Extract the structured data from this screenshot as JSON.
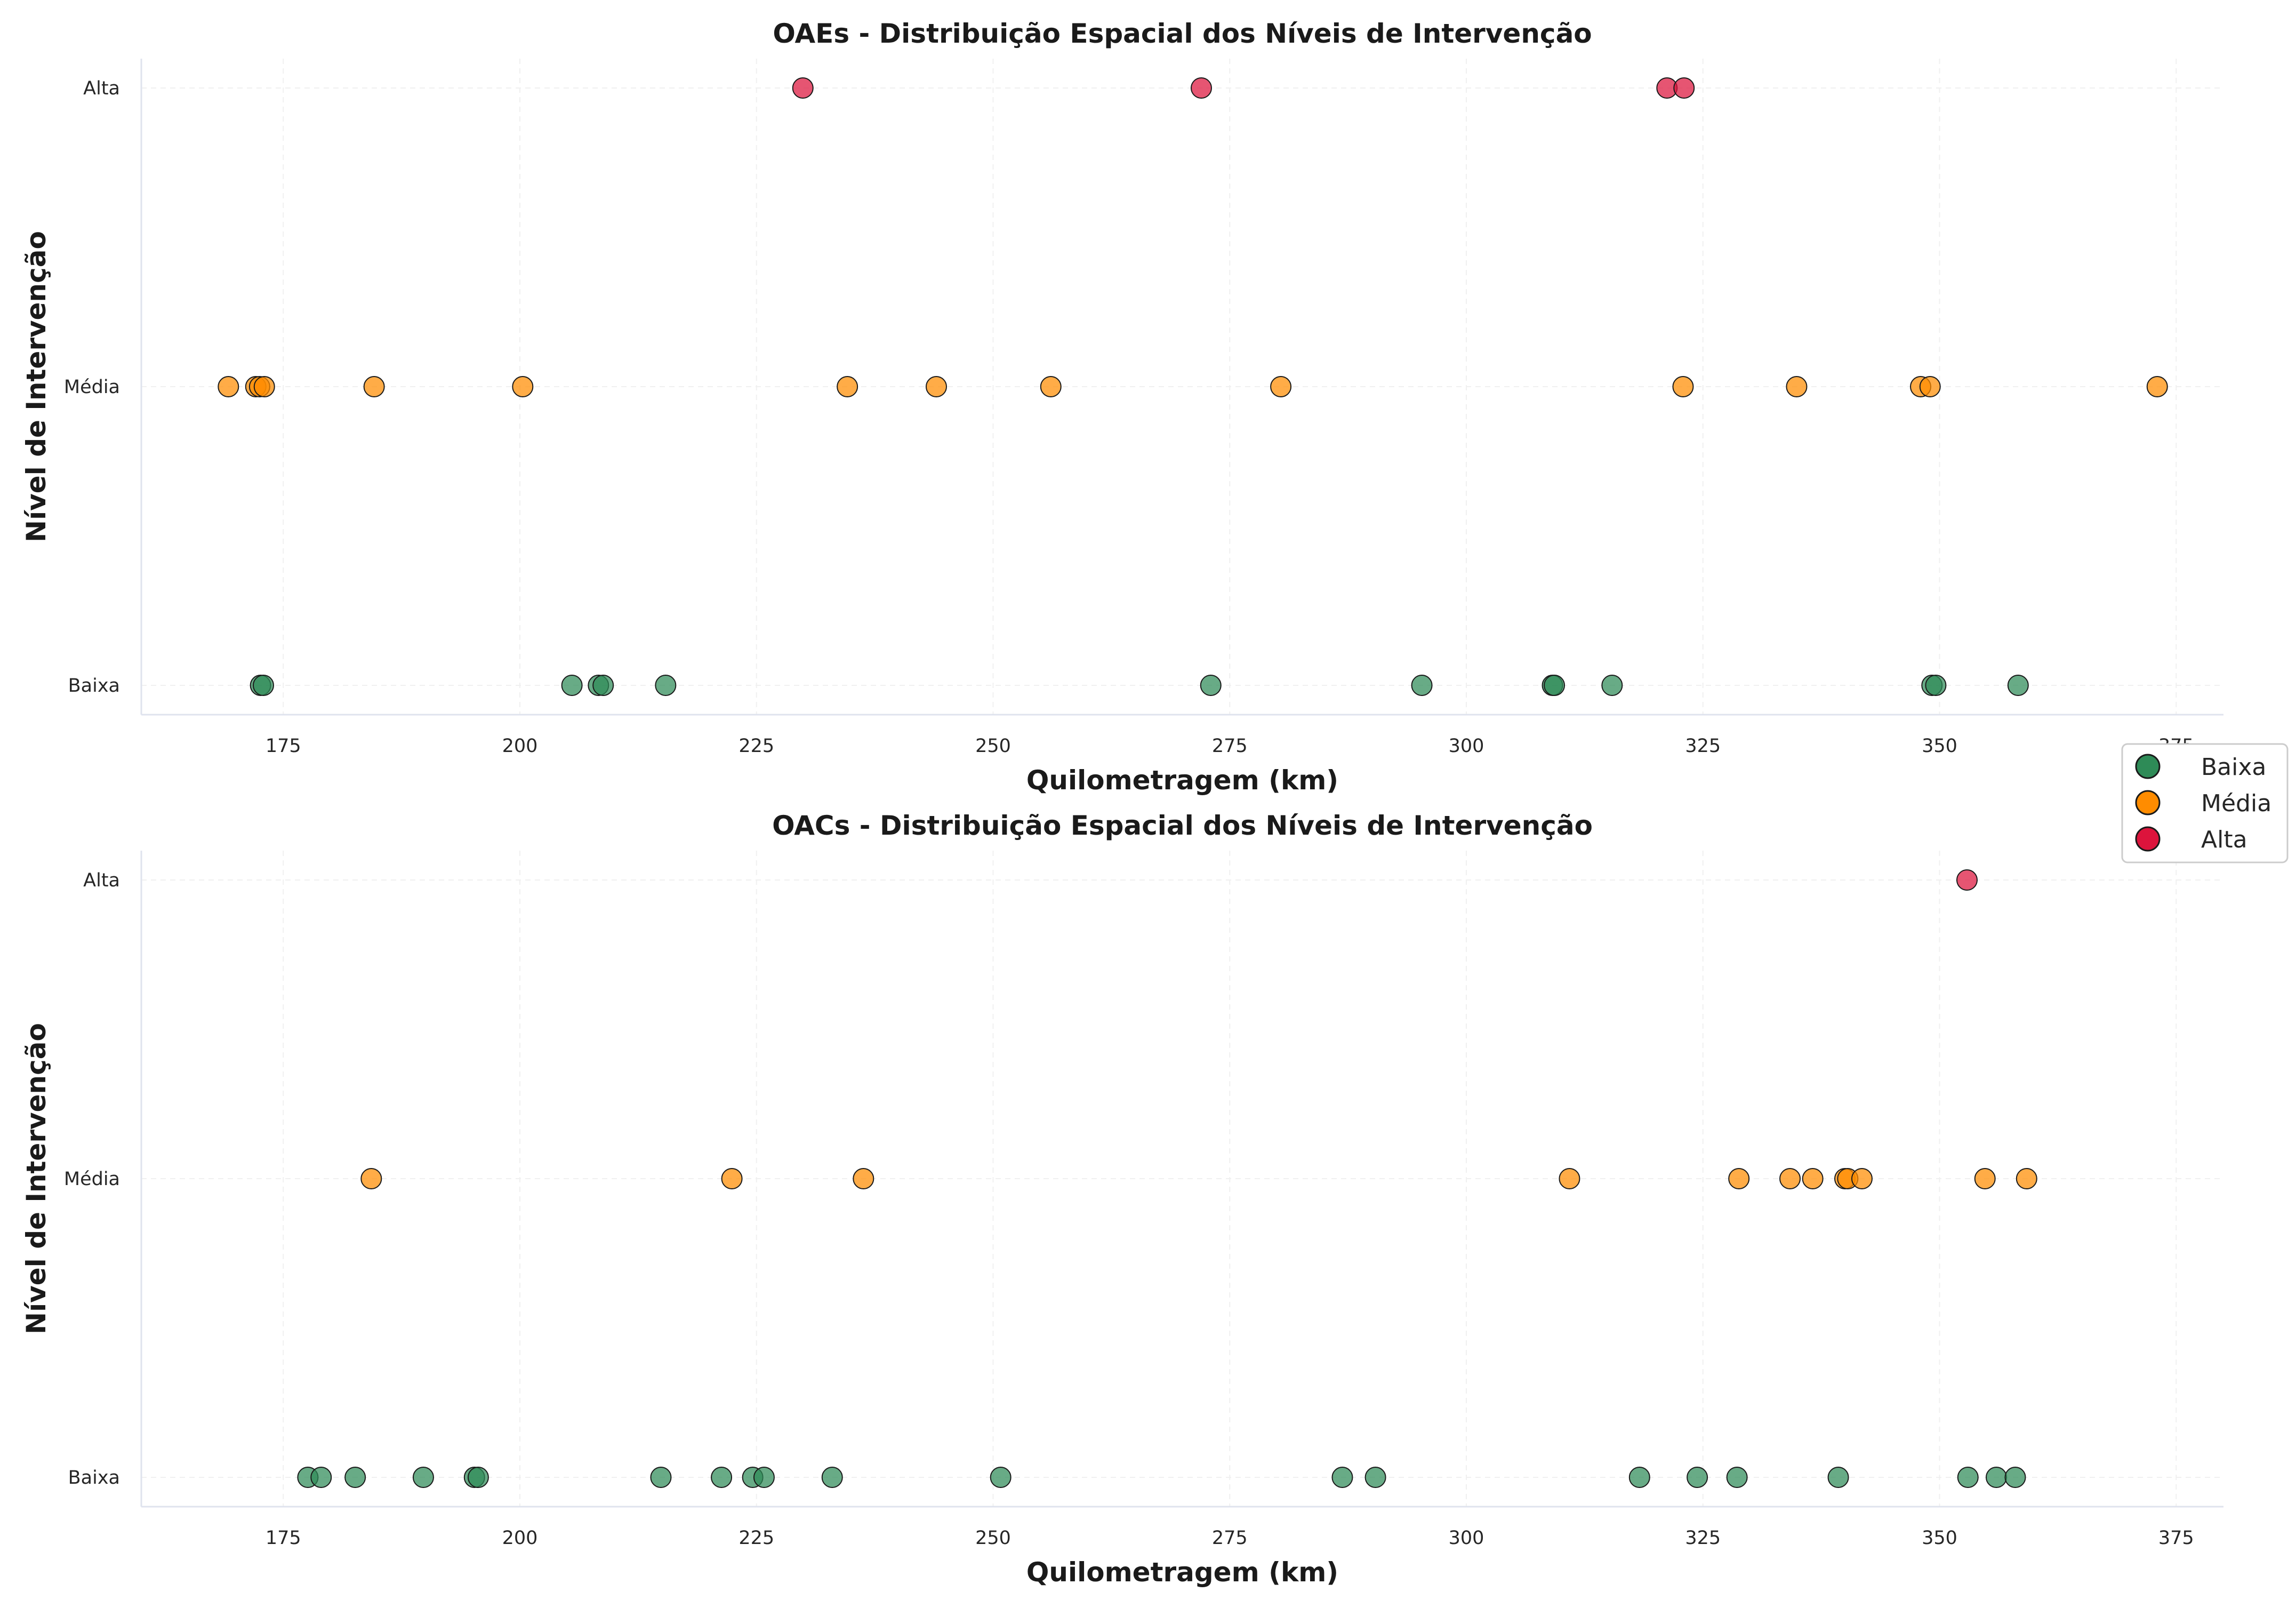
{
  "colors": {
    "Baixa": "#2E8B57",
    "Média": "#FF8C00",
    "Alta": "#DC143C"
  },
  "legend": {
    "placement": "right",
    "items": [
      {
        "label": "Baixa",
        "color": "#2E8B57"
      },
      {
        "label": "Média",
        "color": "#FF8C00"
      },
      {
        "label": "Alta",
        "color": "#DC143C"
      }
    ]
  },
  "chart_data": [
    {
      "type": "scatter",
      "title": "OAEs - Distribuição Espacial dos Níveis de Intervenção",
      "xlabel": "Quilometragem (km)",
      "ylabel": "Nível de Intervenção",
      "xlim": [
        160,
        380
      ],
      "xticks": [
        175,
        200,
        225,
        250,
        275,
        300,
        325,
        350,
        375
      ],
      "categories": [
        "Baixa",
        "Média",
        "Alta"
      ],
      "grid": true,
      "series": [
        {
          "name": "Baixa",
          "x": [
            172.6,
            172.9,
            205.5,
            208.3,
            208.8,
            215.4,
            273.0,
            295.3,
            309.1,
            309.3,
            315.4,
            349.2,
            349.6,
            358.3
          ]
        },
        {
          "name": "Média",
          "x": [
            169.2,
            172.1,
            172.5,
            173.0,
            184.6,
            200.3,
            234.6,
            244.0,
            256.1,
            280.4,
            322.9,
            334.9,
            348.0,
            349.0,
            373.0
          ]
        },
        {
          "name": "Alta",
          "x": [
            229.9,
            272.0,
            321.2,
            323.0
          ]
        }
      ]
    },
    {
      "type": "scatter",
      "title": "OACs - Distribuição Espacial dos Níveis de Intervenção",
      "xlabel": "Quilometragem (km)",
      "ylabel": "Nível de Intervenção",
      "xlim": [
        160,
        380
      ],
      "xticks": [
        175,
        200,
        225,
        250,
        275,
        300,
        325,
        350,
        375
      ],
      "categories": [
        "Baixa",
        "Média",
        "Alta"
      ],
      "grid": true,
      "series": [
        {
          "name": "Baixa",
          "x": [
            177.6,
            179.0,
            182.6,
            189.8,
            195.2,
            195.6,
            214.9,
            221.3,
            224.6,
            225.8,
            233.0,
            250.8,
            286.9,
            290.4,
            318.3,
            324.4,
            328.6,
            339.3,
            353.0,
            356.0,
            358.0
          ]
        },
        {
          "name": "Média",
          "x": [
            184.3,
            222.4,
            236.3,
            310.9,
            328.8,
            334.2,
            336.6,
            340.0,
            340.3,
            341.8,
            354.8,
            359.2
          ]
        },
        {
          "name": "Alta",
          "x": [
            352.9
          ]
        }
      ]
    }
  ]
}
